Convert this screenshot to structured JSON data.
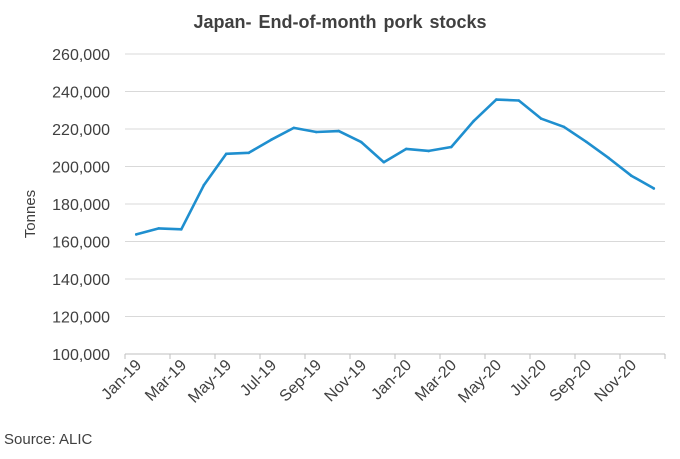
{
  "chart_data": {
    "type": "line",
    "title": "Japan- End-of-month  pork stocks",
    "xlabel": "",
    "ylabel": "Tonnes",
    "ylim": [
      100000,
      260000
    ],
    "yticks": [
      100000,
      120000,
      140000,
      160000,
      180000,
      200000,
      220000,
      240000,
      260000
    ],
    "ytick_labels": [
      "100,000",
      "120,000",
      "140,000",
      "160,000",
      "180,000",
      "200,000",
      "220,000",
      "240,000",
      "260,000"
    ],
    "x": [
      "Jan-19",
      "Feb-19",
      "Mar-19",
      "Apr-19",
      "May-19",
      "Jun-19",
      "Jul-19",
      "Aug-19",
      "Sep-19",
      "Oct-19",
      "Nov-19",
      "Dec-19",
      "Jan-20",
      "Feb-20",
      "Mar-20",
      "Apr-20",
      "May-20",
      "Jun-20",
      "Jul-20",
      "Aug-20",
      "Sep-20",
      "Oct-20",
      "Nov-20",
      "Dec-20"
    ],
    "xtick_labels": [
      "Jan-19",
      "Mar-19",
      "May-19",
      "Jul-19",
      "Sep-19",
      "Nov-19",
      "Jan-20",
      "Mar-20",
      "May-20",
      "Jul-20",
      "Sep-20",
      "Nov-20"
    ],
    "series": [
      {
        "values": [
          163800,
          167000,
          166500,
          190000,
          206800,
          207300,
          214300,
          220600,
          218400,
          218900,
          213000,
          202300,
          209400,
          208300,
          210400,
          224300,
          235700,
          235200,
          225500,
          221200,
          213200,
          204500,
          195100,
          188300
        ]
      }
    ],
    "grid": true,
    "line_color": "#1f8fcf",
    "grid_color": "#d9d9d9",
    "axis_color": "#bfbfbf",
    "text_color": "#404040"
  },
  "source": "Source: ALIC"
}
